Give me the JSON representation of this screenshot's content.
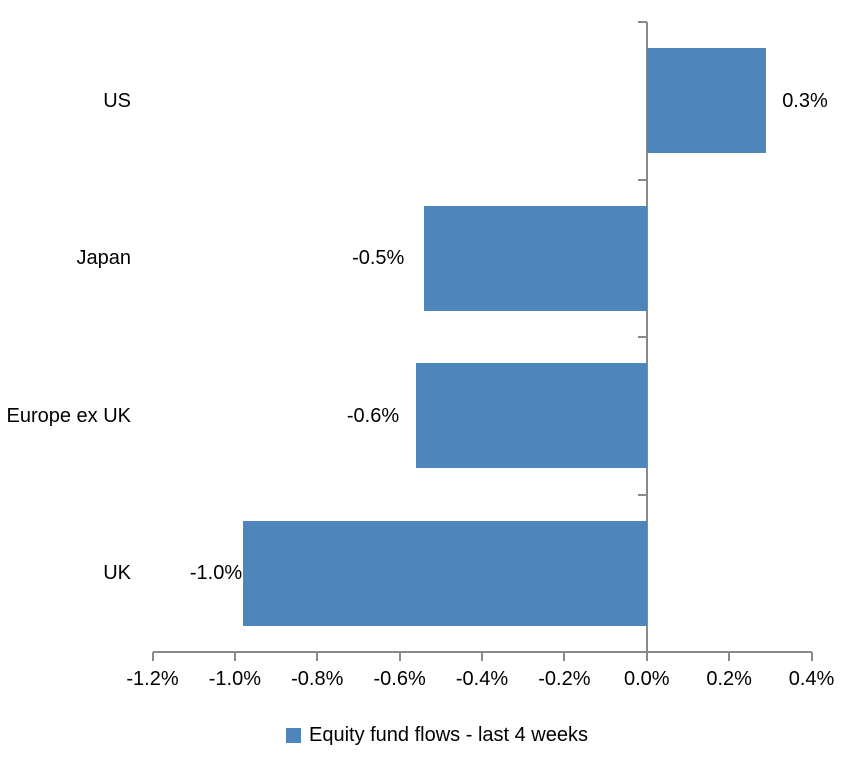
{
  "chart_data": {
    "type": "bar",
    "orientation": "horizontal",
    "title": "",
    "categories": [
      "US",
      "Japan",
      "Europe ex UK",
      "UK"
    ],
    "series": [
      {
        "name": "Equity fund flows - last 4 weeks",
        "values": [
          0.3,
          -0.5,
          -0.6,
          -1.0
        ]
      }
    ],
    "data_labels": [
      "0.3%",
      "-0.5%",
      "-0.6%",
      "-1.0%"
    ],
    "bar_extents_pct": [
      0.29,
      -0.54,
      -0.56,
      -0.98
    ],
    "x_axis": {
      "min": -1.2,
      "max": 0.4,
      "step": 0.2,
      "unit": "%",
      "tick_labels": [
        "-1.2%",
        "-1.0%",
        "-0.8%",
        "-0.6%",
        "-0.4%",
        "-0.2%",
        "0.0%",
        "0.2%",
        "0.4%"
      ]
    },
    "grid": false,
    "legend": {
      "position": "bottom",
      "label": "Equity fund flows - last 4 weeks"
    },
    "colors": {
      "bar": "#4E86BC",
      "axis": "#8A8A8A",
      "text": "#000000",
      "background": "#FFFFFF"
    }
  }
}
